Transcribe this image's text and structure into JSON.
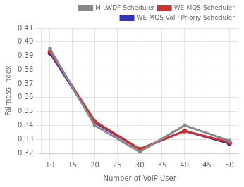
{
  "chart_data": {
    "type": "line",
    "x": [
      10,
      20,
      30,
      40,
      50
    ],
    "series": [
      {
        "name": "M-LWDF Scheduler",
        "color": "#888888",
        "marker": "square",
        "values": [
          0.395,
          0.34,
          0.321,
          0.34,
          0.329
        ]
      },
      {
        "name": "WE-MQS Scheduler",
        "color": "#cc3333",
        "marker": "circle",
        "values": [
          0.393,
          0.343,
          0.323,
          0.336,
          0.328
        ]
      },
      {
        "name": "WE-MQS-VoIP Prioriy Scheduler",
        "color": "#3333bb",
        "marker": "circle",
        "values": [
          0.392,
          0.342,
          0.323,
          0.336,
          0.327
        ]
      }
    ],
    "xlabel": "Number of VoIP User",
    "ylabel": "Fairness Index",
    "xlim": [
      8,
      52
    ],
    "xticks": [
      10,
      15,
      20,
      25,
      30,
      35,
      40,
      45,
      50
    ],
    "ylim": [
      0.32,
      0.41
    ],
    "yticks": [
      0.32,
      0.33,
      0.34,
      0.35,
      0.36,
      0.37,
      0.38,
      0.39,
      {
        "value": 0.4,
        "label": "0.40"
      },
      0.41
    ],
    "grid": true,
    "legend": "upper right"
  }
}
